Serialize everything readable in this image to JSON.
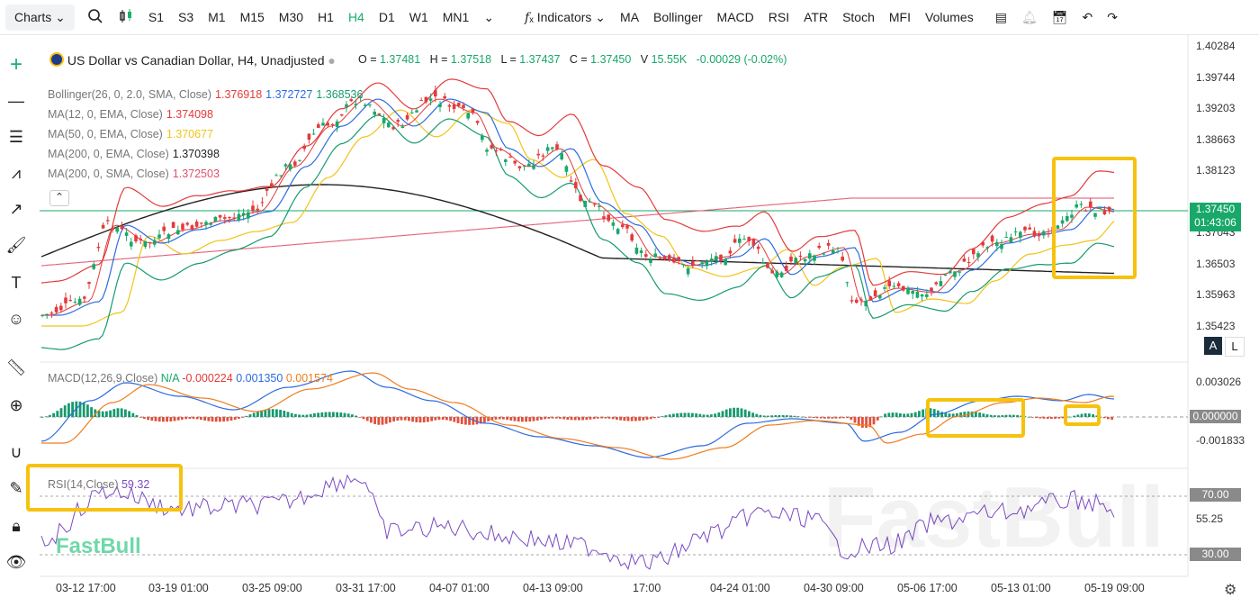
{
  "toolbar": {
    "charts": "Charts",
    "timeframes": [
      "S1",
      "S3",
      "M1",
      "M15",
      "M30",
      "H1",
      "H4",
      "D1",
      "W1",
      "MN1"
    ],
    "active_timeframe": "H4",
    "indicators": "Indicators",
    "indicator_shortcuts": [
      "MA",
      "Bollinger",
      "MACD",
      "RSI",
      "ATR",
      "Stoch",
      "MFI",
      "Volumes"
    ]
  },
  "symbol": {
    "title": "US Dollar vs Canadian Dollar, H4, Unadjusted",
    "o_label": "O =",
    "o": "1.37481",
    "h_label": "H =",
    "h": "1.37518",
    "l_label": "L =",
    "l": "1.37437",
    "c_label": "C =",
    "c": "1.37450",
    "v_label": "V",
    "v": "15.55K",
    "change": "-0.00029 (-0.02%)"
  },
  "legend": [
    {
      "label": "Bollinger(26, 0, 2.0, SMA, Close)",
      "values": [
        "1.376918",
        "1.372727",
        "1.368536"
      ],
      "colors": [
        "#e23b3b",
        "#2c6be0",
        "#159a6e"
      ]
    },
    {
      "label": "MA(12, 0, EMA, Close)",
      "values": [
        "1.374098"
      ],
      "colors": [
        "#e23b3b"
      ]
    },
    {
      "label": "MA(50, 0, EMA, Close)",
      "values": [
        "1.370677"
      ],
      "colors": [
        "#f0c419"
      ]
    },
    {
      "label": "MA(200, 0, EMA, Close)",
      "values": [
        "1.370398"
      ],
      "colors": [
        "#222222"
      ]
    },
    {
      "label": "MA(200, 0, SMA, Close)",
      "values": [
        "1.372503"
      ],
      "colors": [
        "#e0506b"
      ]
    }
  ],
  "macd": {
    "label": "MACD(12,26,9,Close)",
    "na": "N/A",
    "v1": "-0.000224",
    "v2": "0.001350",
    "v3": "0.001574"
  },
  "rsi": {
    "label": "RSI(14,Close)",
    "value": "59.32"
  },
  "price_axis": [
    "1.40284",
    "1.39744",
    "1.39203",
    "1.38663",
    "1.38123",
    "1.37583",
    "1.37043",
    "1.36503",
    "1.35963",
    "1.35423"
  ],
  "current_price": "1.37450",
  "countdown": "01:43:06",
  "macd_axis": [
    "0.003026",
    "0.000000",
    "-0.001833"
  ],
  "macd_tag": "0.000000",
  "rsi_axis": [
    "70.00",
    "55.25",
    "30.00"
  ],
  "time_axis": [
    "03-12 17:00",
    "03-19 01:00",
    "03-25 09:00",
    "03-31 17:00",
    "04-07 01:00",
    "04-13 09:00",
    "17:00",
    "04-24 01:00",
    "04-30 09:00",
    "05-06 17:00",
    "05-13 01:00",
    "05-19 09:00"
  ],
  "watermark": "FastBull",
  "axis_buttons": [
    "A",
    "L"
  ]
}
